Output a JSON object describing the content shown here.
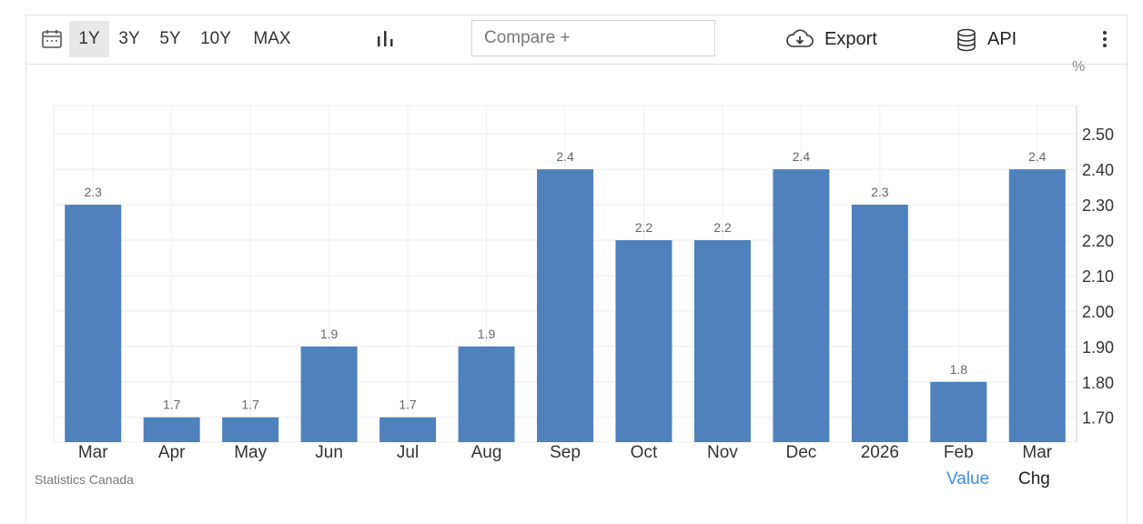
{
  "toolbar": {
    "ranges": [
      "1Y",
      "3Y",
      "5Y",
      "10Y",
      "MAX"
    ],
    "active_range": "1Y",
    "compare_placeholder": "Compare +",
    "export_label": "Export",
    "api_label": "API"
  },
  "unit_label": "%",
  "footer": {
    "source": "Statistics Canada",
    "value_label": "Value",
    "chg_label": "Chg"
  },
  "colors": {
    "bar": "#4f81bd",
    "accent": "#3a8ee6"
  },
  "chart_data": {
    "type": "bar",
    "categories": [
      "Mar",
      "Apr",
      "May",
      "Jun",
      "Jul",
      "Aug",
      "Sep",
      "Oct",
      "Nov",
      "Dec",
      "2026",
      "Feb",
      "Mar"
    ],
    "values": [
      2.3,
      1.7,
      1.7,
      1.9,
      1.7,
      1.9,
      2.4,
      2.2,
      2.2,
      2.4,
      2.3,
      1.8,
      2.4
    ],
    "data_labels": [
      "2.3",
      "1.7",
      "1.7",
      "1.9",
      "1.7",
      "1.9",
      "2.4",
      "2.2",
      "2.2",
      "2.4",
      "2.3",
      "1.8",
      "2.4"
    ],
    "yticks": [
      "1.70",
      "1.80",
      "1.90",
      "2.00",
      "2.10",
      "2.20",
      "2.30",
      "2.40",
      "2.50"
    ],
    "ylim": [
      1.63,
      2.58
    ],
    "y_axis_position": "right",
    "grid": true
  }
}
